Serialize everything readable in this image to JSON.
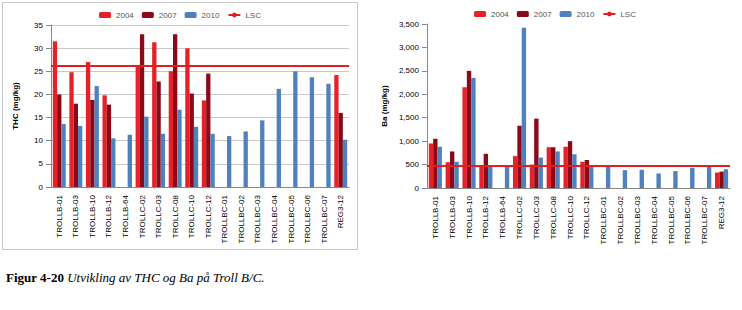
{
  "chart_data": [
    {
      "type": "bar",
      "y_label": "THC (mg/kg)",
      "categories": [
        "TROLLB-01",
        "TROLLB-03",
        "TROLLB-10",
        "TROLLB-12",
        "TROLLB-64",
        "TROLLC-02",
        "TROLLC-03",
        "TROLLC-08",
        "TROLLC-10",
        "TROLLC-12",
        "TROLLBC-01",
        "TROLLBC-02",
        "TROLLBC-03",
        "TROLLBC-04",
        "TROLLBC-05",
        "TROLLBC-06",
        "TROLLBC-07",
        "REG3-12"
      ],
      "series": [
        {
          "name": "2004",
          "color": "#e8202a",
          "values": [
            31.5,
            24.8,
            27,
            19.8,
            null,
            26,
            31.3,
            25,
            30,
            18.7,
            null,
            null,
            null,
            null,
            null,
            null,
            null,
            24.2
          ]
        },
        {
          "name": "2007",
          "color": "#8b0a1a",
          "values": [
            20,
            18,
            18.8,
            17.8,
            null,
            33,
            22.8,
            33,
            20.2,
            24.5,
            null,
            null,
            null,
            null,
            null,
            null,
            null,
            16
          ]
        },
        {
          "name": "2010",
          "color": "#4f81bd",
          "values": [
            13.6,
            13.2,
            21.8,
            10.5,
            11.3,
            15.2,
            11.5,
            16.7,
            13,
            11.5,
            11,
            12,
            14.4,
            21.2,
            25,
            23.7,
            22.3,
            10.2
          ]
        },
        {
          "name": "LSC",
          "type": "line",
          "color": "#e02020",
          "value": 26.3
        }
      ],
      "ylim": [
        0,
        35
      ],
      "yticks": [
        0,
        5,
        10,
        15,
        20,
        25,
        30,
        35
      ],
      "grid": true,
      "legend": "top"
    },
    {
      "type": "bar",
      "y_label": "Ba (mg/kg)",
      "categories": [
        "TROLLB-01",
        "TROLLB-03",
        "TROLLB-10",
        "TROLLB-12",
        "TROLLB-64",
        "TROLLC-02",
        "TROLLC-03",
        "TROLLC-08",
        "TROLLC-10",
        "TROLLC-12",
        "TROLLBC-01",
        "TROLLBC-02",
        "TROLLBC-03",
        "TROLLBC-04",
        "TROLLBC-05",
        "TROLLBC-06",
        "TROLLBC-07",
        "REG3-12"
      ],
      "series": [
        {
          "name": "2004",
          "color": "#e8202a",
          "values": [
            950,
            550,
            2150,
            450,
            null,
            680,
            500,
            870,
            880,
            560,
            null,
            null,
            null,
            null,
            null,
            null,
            null,
            330
          ]
        },
        {
          "name": "2007",
          "color": "#8b0a1a",
          "values": [
            1050,
            780,
            2500,
            730,
            null,
            1330,
            1480,
            870,
            1000,
            600,
            null,
            null,
            null,
            null,
            null,
            null,
            null,
            350
          ]
        },
        {
          "name": "2010",
          "color": "#4f81bd",
          "values": [
            880,
            560,
            2350,
            450,
            450,
            3420,
            650,
            780,
            720,
            480,
            470,
            380,
            390,
            310,
            360,
            430,
            450,
            400
          ]
        },
        {
          "name": "LSC",
          "type": "line",
          "color": "#e02020",
          "value": 480
        }
      ],
      "ylim": [
        0,
        3500
      ],
      "yticks": [
        0,
        500,
        1000,
        1500,
        2000,
        2500,
        3000,
        3500
      ],
      "grid": false,
      "legend": "top"
    }
  ],
  "caption": {
    "number": "Figur 4-20",
    "text": "Utvikling av THC og Ba på Troll B/C."
  }
}
